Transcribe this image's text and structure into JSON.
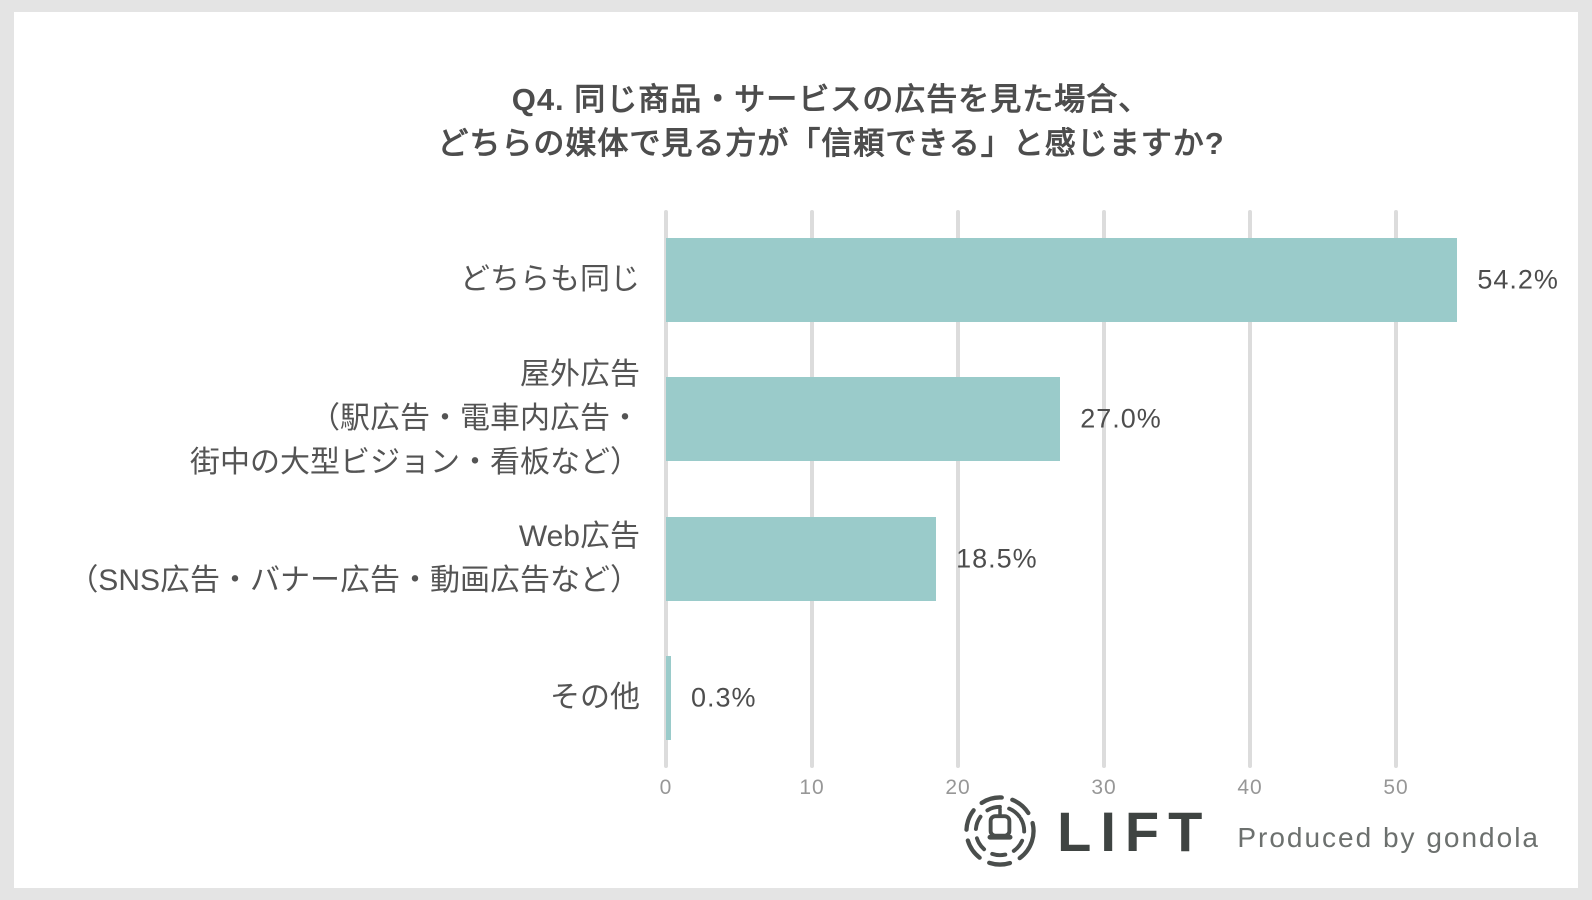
{
  "page": {
    "background": "#e4e4e4",
    "card_background": "#ffffff"
  },
  "title": {
    "line1": "Q4. 同じ商品・サービスの広告を見た場合、",
    "line2": "どちらの媒体で見る方が「信頼できる」と感じますか?"
  },
  "chart_data": {
    "type": "bar",
    "orientation": "horizontal",
    "title": "Q4. 同じ商品・サービスの広告を見た場合、どちらの媒体で見る方が「信頼できる」と感じますか?",
    "categories": [
      [
        "どちらも同じ"
      ],
      [
        "屋外広告",
        "（駅広告・電車内広告・",
        "街中の大型ビジョン・看板など）"
      ],
      [
        "Web広告",
        "（SNS広告・バナー広告・動画広告など）"
      ],
      [
        "その他"
      ]
    ],
    "values": [
      54.2,
      27.0,
      18.5,
      0.3
    ],
    "value_labels": [
      "54.2%",
      "27.0%",
      "18.5%",
      "0.3%"
    ],
    "x_ticks": [
      0,
      10,
      20,
      30,
      40,
      50
    ],
    "xlim": [
      0,
      60
    ],
    "xlabel": "",
    "ylabel": "",
    "grid": true,
    "legend": false,
    "bar_color": "#9acbca",
    "gridline_color": "#dcdcdc",
    "label_color": "#545454",
    "value_label_color": "#4d4d4d",
    "tick_color": "#979797"
  },
  "footer": {
    "logo_icon": "gondola-lift-icon",
    "logo_text": "LIFT",
    "credit": "Produced by gondola"
  }
}
